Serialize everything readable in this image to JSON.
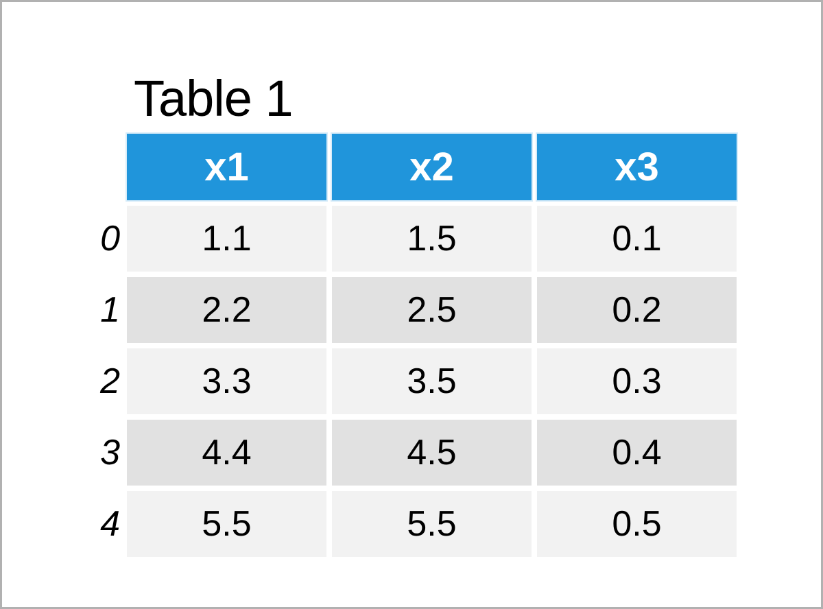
{
  "page": {
    "title": "Table 1"
  },
  "colors": {
    "header_bg": "#2095db",
    "header_text": "#ffffff",
    "row_light": "#f2f2f2",
    "row_dark": "#e1e1e1",
    "page_border": "#b1b1b1",
    "text": "#000000"
  },
  "chart_data": {
    "type": "table",
    "title": "Table 1",
    "columns": [
      "x1",
      "x2",
      "x3"
    ],
    "index": [
      "0",
      "1",
      "2",
      "3",
      "4"
    ],
    "rows": [
      [
        1.1,
        1.5,
        0.1
      ],
      [
        2.2,
        2.5,
        0.2
      ],
      [
        3.3,
        3.5,
        0.3
      ],
      [
        4.4,
        4.5,
        0.4
      ],
      [
        5.5,
        5.5,
        0.5
      ]
    ]
  }
}
